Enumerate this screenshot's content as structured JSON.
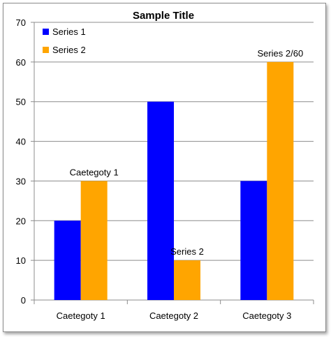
{
  "chart_data": {
    "type": "bar",
    "title": "Sample Title",
    "xlabel": "",
    "ylabel": "",
    "categories": [
      "Caetegoty 1",
      "Caetegoty 2",
      "Caetegoty 3"
    ],
    "series": [
      {
        "name": "Series 1",
        "color": "#0000ff",
        "values": [
          20,
          50,
          30
        ]
      },
      {
        "name": "Series 2",
        "color": "#ffa500",
        "values": [
          30,
          10,
          60
        ]
      }
    ],
    "ylim": [
      0,
      70
    ],
    "yticks": [
      "0",
      "10",
      "20",
      "30",
      "40",
      "50",
      "60",
      "70"
    ],
    "grid": true,
    "legend": "top-left",
    "data_labels": [
      {
        "series": 1,
        "category": 0,
        "text": "Caetegoty 1"
      },
      {
        "series": 1,
        "category": 1,
        "text": "Series 2"
      },
      {
        "series": 1,
        "category": 2,
        "text": "Series 2/60"
      }
    ]
  }
}
